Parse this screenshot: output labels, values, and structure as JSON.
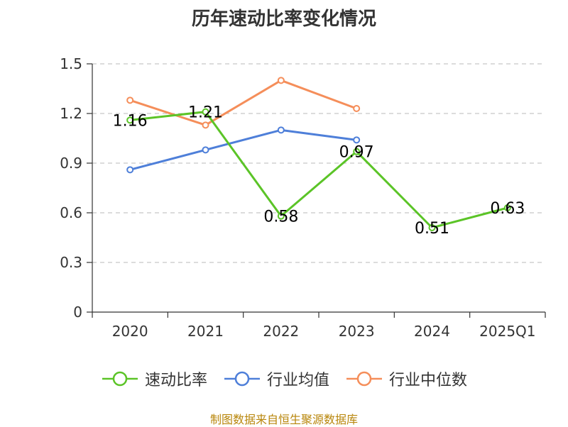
{
  "chart_data": {
    "type": "line",
    "title": "历年速动比率变化情况",
    "categories": [
      "2020",
      "2021",
      "2022",
      "2023",
      "2024",
      "2025Q1"
    ],
    "ylim": [
      0,
      1.5
    ],
    "yticks": [
      "0",
      "0.3",
      "0.6",
      "0.9",
      "1.2",
      "1.5"
    ],
    "grid": true,
    "legend_position": "bottom",
    "series": [
      {
        "name": "速动比率",
        "color": "#5bc427",
        "values": [
          1.16,
          1.21,
          0.58,
          0.97,
          0.51,
          0.63
        ],
        "labels": [
          "1.16",
          "1.21",
          "0.58",
          "0.97",
          "0.51",
          "0.63"
        ]
      },
      {
        "name": "行业均值",
        "color": "#4e7fd9",
        "values": [
          0.86,
          0.98,
          1.1,
          1.04,
          null,
          null
        ]
      },
      {
        "name": "行业中位数",
        "color": "#f58e5a",
        "values": [
          1.28,
          1.13,
          1.4,
          1.23,
          null,
          null
        ]
      }
    ]
  },
  "source_note": "制图数据来自恒生聚源数据库"
}
